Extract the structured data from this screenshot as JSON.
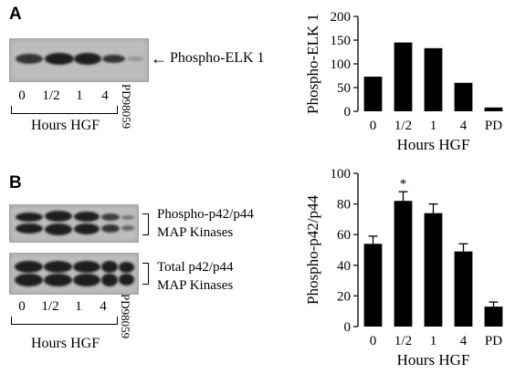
{
  "panel_a": {
    "letter": "A",
    "arrow": "←",
    "band_label": "Phospho-ELK 1",
    "lanes": [
      "0",
      "1/2",
      "1",
      "4"
    ],
    "inhibitor_lane": "PD98059",
    "group_caption": "Hours HGF"
  },
  "panel_b": {
    "letter": "B",
    "blot1_label_line1": "Phospho-p42/p44",
    "blot1_label_line2": "MAP Kinases",
    "blot2_label_line1": "Total p42/p44",
    "blot2_label_line2": "MAP Kinases",
    "lanes": [
      "0",
      "1/2",
      "1",
      "4"
    ],
    "inhibitor_lane": "PD98059",
    "group_caption": "Hours HGF"
  },
  "chart_data": [
    {
      "type": "bar",
      "categories": [
        "0",
        "1/2",
        "1",
        "4",
        "PD"
      ],
      "values": [
        73,
        145,
        133,
        60,
        8
      ],
      "xlabel": "Hours HGF",
      "ylabel": "Phospho-ELK 1",
      "ylim": [
        0,
        200
      ],
      "yticks": [
        0,
        50,
        100,
        150,
        200
      ],
      "bar_color": "#000000"
    },
    {
      "type": "bar",
      "categories": [
        "0",
        "1/2",
        "1",
        "4",
        "PD"
      ],
      "values": [
        54,
        82,
        74,
        49,
        13
      ],
      "errors": [
        5,
        6,
        6,
        5,
        3
      ],
      "annotations": [
        {
          "category": "1/2",
          "text": "*"
        }
      ],
      "xlabel": "Hours HGF",
      "ylabel": "Phospho-p42/p44",
      "ylim": [
        0,
        100
      ],
      "yticks": [
        0,
        20,
        40,
        60,
        80,
        100
      ],
      "bar_color": "#000000"
    }
  ]
}
